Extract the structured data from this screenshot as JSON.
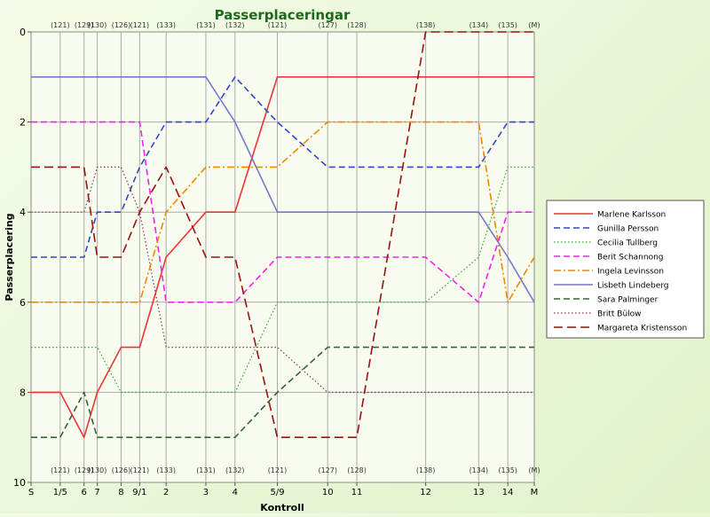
{
  "chart_data": {
    "type": "line",
    "title": "Passerplaceringar",
    "xlabel": "Kontroll",
    "ylabel": "Passerplacering",
    "ylim": [
      0,
      10
    ],
    "y_ticks": [
      0,
      2,
      4,
      6,
      8,
      10
    ],
    "y_inverted": true,
    "grid": true,
    "legend_position": "right",
    "categories": [
      "S",
      "1/5",
      "6",
      "7",
      "8",
      "9/1",
      "2",
      "3",
      "4",
      "5/9",
      "10",
      "11",
      "12",
      "13",
      "14",
      "M"
    ],
    "x": [
      0,
      1.1,
      2.0,
      2.5,
      3.4,
      4.1,
      5.1,
      6.6,
      7.7,
      9.3,
      11.2,
      12.3,
      14.9,
      16.9,
      18.0,
      19.0
    ],
    "codes": [
      "",
      "(121)",
      "(129)",
      "(130)",
      "(126)",
      "(121)",
      "(133)",
      "(131)",
      "(132)",
      "(121)",
      "(127)",
      "(128)",
      "(138)",
      "(134)",
      "(135)",
      "(M)"
    ],
    "series": [
      {
        "name": "Marlene Karlsson",
        "color": "#ee3333",
        "dash": "solid",
        "values": [
          8,
          8,
          9,
          8,
          7,
          7,
          5,
          4,
          4,
          1,
          1,
          1,
          1,
          1,
          1,
          1
        ]
      },
      {
        "name": "Gunilla Persson",
        "color": "#3344cc",
        "dash": "dashed",
        "values": [
          5,
          5,
          5,
          4,
          4,
          3,
          2,
          2,
          1,
          2,
          3,
          3,
          3,
          3,
          2,
          2
        ]
      },
      {
        "name": "Cecilia Tullberg",
        "color": "#33aa33",
        "dash": "dotted",
        "values": [
          7,
          7,
          7,
          7,
          8,
          8,
          8,
          8,
          8,
          6,
          6,
          6,
          6,
          5,
          3,
          3
        ]
      },
      {
        "name": "Berit Schannong",
        "color": "#ee22ee",
        "dash": "dashed",
        "values": [
          2,
          2,
          2,
          2,
          2,
          2,
          6,
          6,
          6,
          5,
          5,
          5,
          5,
          6,
          4,
          4
        ]
      },
      {
        "name": "Ingela Levinsson",
        "color": "#ee8800",
        "dash": "dashdot",
        "values": [
          6,
          6,
          6,
          6,
          6,
          6,
          4,
          3,
          3,
          3,
          2,
          2,
          2,
          2,
          6,
          5
        ]
      },
      {
        "name": "Lisbeth Lindeberg",
        "color": "#7777cc",
        "dash": "solid",
        "values": [
          1,
          1,
          1,
          1,
          1,
          1,
          1,
          1,
          2,
          4,
          4,
          4,
          4,
          4,
          5,
          6
        ]
      },
      {
        "name": "Sara Palminger",
        "color": "#336633",
        "dash": "dashed",
        "values": [
          9,
          9,
          8,
          9,
          9,
          9,
          9,
          9,
          9,
          8,
          7,
          7,
          7,
          7,
          7,
          7
        ]
      },
      {
        "name": "Britt Bülow",
        "color": "#883366",
        "dash": "dotted",
        "values": [
          4,
          4,
          4,
          3,
          3,
          4,
          7,
          7,
          7,
          7,
          8,
          8,
          8,
          8,
          8,
          8
        ]
      },
      {
        "name": "Margareta Kristensson",
        "color": "#991111",
        "dash": "longdash",
        "values": [
          3,
          3,
          3,
          5,
          5,
          4,
          3,
          5,
          5,
          9,
          9,
          9,
          0,
          0,
          0,
          0
        ]
      }
    ]
  }
}
